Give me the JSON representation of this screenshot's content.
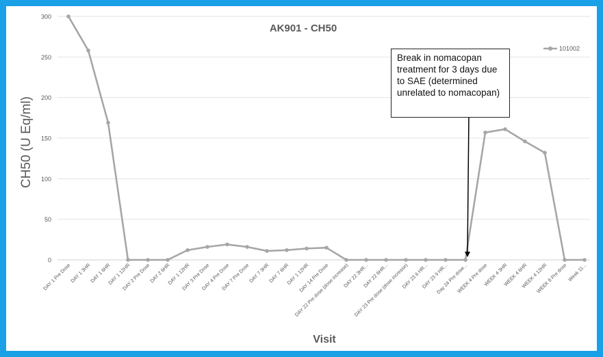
{
  "chart_data": {
    "type": "line",
    "title": "AK901 - CH50",
    "xlabel": "Visit",
    "ylabel": "CH50 (U Eq/ml)",
    "ylim": [
      0,
      300
    ],
    "yticks": [
      0,
      50,
      100,
      150,
      200,
      250,
      300
    ],
    "grid": true,
    "legend_position": "top-right",
    "categories": [
      "DAY 1 Pre Dose",
      "DAY 1 3HR",
      "DAY 1 6HR",
      "DAY 1 12HR",
      "DAY 2 Pre Dose",
      "DAY 2 6HR",
      "DAY 1 12HR",
      "DAY 3 Pre Dose",
      "DAY 4 Pre Dose",
      "DAY 7 Pre Dose",
      "DAY 7 3HR",
      "DAY 7 6HR",
      "DAY 1 12HR",
      "DAY 14 Pre Dose",
      "DAY 22 Pre dose (dose increase)",
      "DAY 22 3HR...",
      "DAY 22 6HR...",
      "DAY 23 Pre dose (dose increase)",
      "DAY 23 6 HR...",
      "DAY 23 9 HR...",
      "Day 24 Pre dose...",
      "WEEK 4 Pre dose",
      "WEEK 4 3HR",
      "WEEK 4 6HR",
      "WEEK 4 12HR",
      "WEEK 8 Pre dose",
      "Week 11..."
    ],
    "series": [
      {
        "name": "101002",
        "color": "#a6a6a6",
        "values": [
          300,
          258,
          169,
          0,
          0,
          0,
          12,
          16,
          19,
          16,
          11,
          12,
          14,
          15,
          0,
          0,
          0,
          0,
          0,
          0,
          0,
          157,
          161,
          146,
          132,
          0,
          0
        ]
      }
    ],
    "annotations": [
      {
        "text": "Break in nomacopan treatment for 3 days due to SAE (determined unrelated to nomacopan)",
        "points_to_category": "Day 24 Pre dose..."
      }
    ]
  },
  "style": {
    "frame_color": "#1aa0e6",
    "line_color": "#a6a6a6",
    "grid_color": "#e3e3e3",
    "text_color": "#595959"
  }
}
